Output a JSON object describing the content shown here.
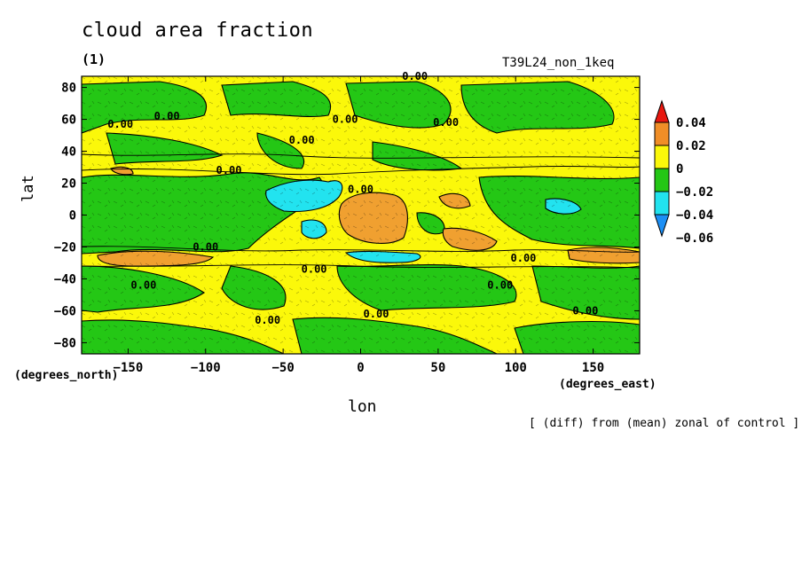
{
  "title": "cloud area fraction",
  "subtitle": "(1)",
  "run_label": "T39L24_non_1keq",
  "footnote": "[ (diff) from (mean) zonal of control ]",
  "chart_data": {
    "type": "heatmap",
    "xlabel": "lon",
    "ylabel": "lat",
    "x_unit": "(degrees_east)",
    "y_unit": "(degrees_north)",
    "xlim": [
      -180,
      180
    ],
    "ylim": [
      -87,
      87
    ],
    "x_ticks": [
      -150,
      -100,
      -50,
      0,
      50,
      100,
      150
    ],
    "y_ticks": [
      80,
      60,
      40,
      20,
      0,
      -20,
      -40,
      -60,
      -80
    ],
    "contour_label": "0.00",
    "colorbar": {
      "levels": [
        0.04,
        0.02,
        0,
        -0.02,
        -0.04,
        -0.06
      ],
      "level_labels": [
        "0.04",
        "0.02",
        "0",
        "−0.02",
        "−0.04",
        "−0.06"
      ],
      "colors": [
        "#e8170f",
        "#f08e27",
        "#fbf80a",
        "#24c715",
        "#22e3ef",
        "#1c8ff5"
      ]
    },
    "regions": [
      {
        "value": "positive",
        "color": "#f0a030",
        "lon": [
          -10,
          25
        ],
        "lat": [
          -20,
          10
        ]
      },
      {
        "value": "positive",
        "color": "#f0a030",
        "lon": [
          -180,
          -100
        ],
        "lat": [
          -30,
          -20
        ]
      },
      {
        "value": "positive",
        "color": "#f0a030",
        "lon": [
          50,
          90
        ],
        "lat": [
          -25,
          -15
        ]
      },
      {
        "value": "positive",
        "color": "#f0a030",
        "lon": [
          130,
          180
        ],
        "lat": [
          -30,
          -20
        ]
      },
      {
        "value": "negative",
        "color": "#22e3ef",
        "lon": [
          -60,
          -10
        ],
        "lat": [
          -20,
          20
        ]
      },
      {
        "value": "negative",
        "color": "#22e3ef",
        "lon": [
          -10,
          40
        ],
        "lat": [
          -30,
          -25
        ]
      },
      {
        "value": "negative",
        "color": "#22e3ef",
        "lon": [
          115,
          145
        ],
        "lat": [
          0,
          10
        ]
      }
    ]
  }
}
